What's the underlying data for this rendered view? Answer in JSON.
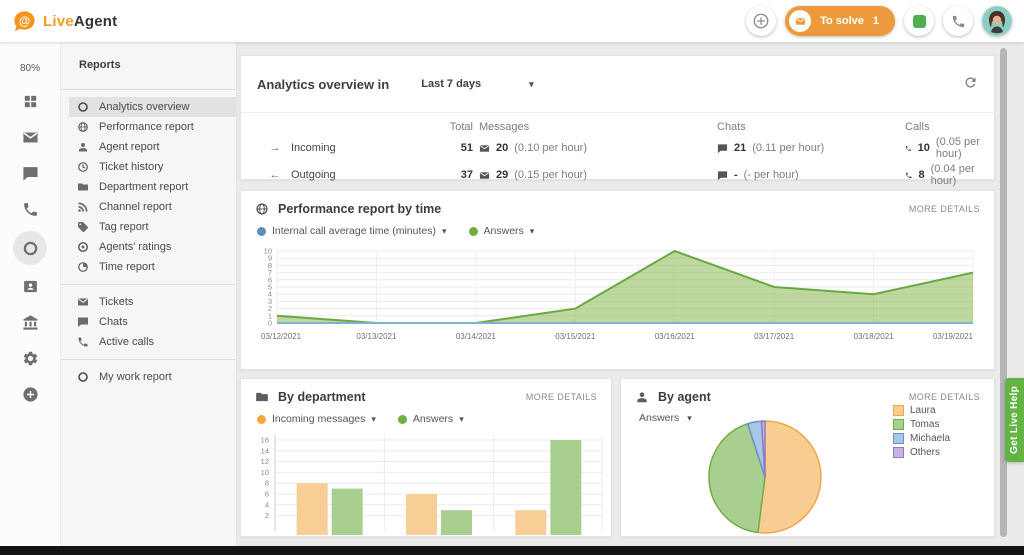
{
  "topbar": {
    "brand_live": "Live",
    "brand_agent": "Agent",
    "to_solve": {
      "label": "To solve",
      "count": "1",
      "color": "#ED9A3F"
    }
  },
  "rail": {
    "usage": "80%",
    "items": [
      {
        "icon": "grid",
        "name": "dashboard"
      },
      {
        "icon": "mail",
        "name": "tickets"
      },
      {
        "icon": "chat",
        "name": "chats"
      },
      {
        "icon": "phone",
        "name": "calls"
      },
      {
        "icon": "ring",
        "name": "reports",
        "selected": true
      },
      {
        "icon": "card",
        "name": "customers"
      },
      {
        "icon": "bank",
        "name": "departments"
      },
      {
        "icon": "gear",
        "name": "settings"
      },
      {
        "icon": "plus",
        "name": "add"
      }
    ]
  },
  "sidebar": {
    "title": "Reports",
    "sections": [
      {
        "items": [
          {
            "icon": "ring",
            "label": "Analytics overview",
            "selected": true
          },
          {
            "icon": "globe",
            "label": "Performance report"
          },
          {
            "icon": "person",
            "label": "Agent report"
          },
          {
            "icon": "history",
            "label": "Ticket history"
          },
          {
            "icon": "folder",
            "label": "Department report"
          },
          {
            "icon": "rss",
            "label": "Channel report"
          },
          {
            "icon": "tag",
            "label": "Tag report"
          },
          {
            "icon": "target",
            "label": "Agents' ratings"
          },
          {
            "icon": "timepie",
            "label": "Time report"
          }
        ]
      },
      {
        "items": [
          {
            "icon": "mail",
            "label": "Tickets"
          },
          {
            "icon": "chat",
            "label": "Chats"
          },
          {
            "icon": "phone",
            "label": "Active calls"
          }
        ]
      },
      {
        "items": [
          {
            "icon": "ring",
            "label": "My work report"
          }
        ]
      }
    ]
  },
  "overview": {
    "title": "Analytics overview in",
    "range": "Last 7 days"
  },
  "stats": {
    "columns": {
      "total": "Total",
      "messages": "Messages",
      "chats": "Chats",
      "calls": "Calls"
    },
    "rows": [
      {
        "arrow": "→",
        "label": "Incoming",
        "total": "51",
        "messages": "20",
        "messages_rate": "(0.10 per hour)",
        "chats": "21",
        "chats_rate": "(0.11 per hour)",
        "calls": "10",
        "calls_rate": "(0.05 per hour)"
      },
      {
        "arrow": "←",
        "label": "Outgoing",
        "total": "37",
        "messages": "29",
        "messages_rate": "(0.15 per hour)",
        "chats": "-",
        "chats_rate": "(- per hour)",
        "calls": "8",
        "calls_rate": "(0.04 per hour)"
      }
    ]
  },
  "panels": {
    "performance": {
      "title": "Performance report by time",
      "more": "MORE DETAILS"
    },
    "department": {
      "title": "By department",
      "more": "MORE DETAILS"
    },
    "agent": {
      "title": "By agent",
      "more": "MORE DETAILS",
      "metric": "Answers"
    }
  },
  "help_tab": {
    "label": "Get Live Help",
    "color": "#63B345"
  },
  "chart_data": [
    {
      "type": "area",
      "title": "Performance report by time",
      "x": [
        "03/12/2021",
        "03/13/2021",
        "03/14/2021",
        "03/15/2021",
        "03/16/2021",
        "03/17/2021",
        "03/18/2021",
        "03/19/2021"
      ],
      "ylim": [
        0,
        10
      ],
      "grid": true,
      "legend_position": "top",
      "series": [
        {
          "name": "Internal call average time (minutes)",
          "color": "#5B8FB4",
          "line": "#82B1D0",
          "values": [
            0,
            0,
            0,
            0,
            0,
            0,
            0,
            0
          ]
        },
        {
          "name": "Answers",
          "color": "#6FAF3F",
          "line": "#69A843",
          "fill": "rgba(126,178,66,0.5)",
          "values": [
            1,
            0,
            0,
            2,
            10,
            5,
            4,
            7
          ]
        }
      ]
    },
    {
      "type": "bar",
      "title": "By department",
      "categories": [
        "",
        "",
        ""
      ],
      "ylim": [
        0,
        16
      ],
      "y_ticks": [
        2,
        4,
        6,
        8,
        10,
        12,
        14,
        16
      ],
      "grid": true,
      "series": [
        {
          "name": "Incoming messages",
          "color": "#F2A83B",
          "fill": "#F7CE95",
          "values": [
            8,
            6,
            3
          ]
        },
        {
          "name": "Answers",
          "color": "#6FAF3F",
          "fill": "#A9CF90",
          "values": [
            7,
            3,
            16
          ]
        }
      ]
    },
    {
      "type": "pie",
      "title": "By agent",
      "metric": "Answers",
      "slices": [
        {
          "label": "Laura",
          "pct": 52,
          "fill": "#F8CD92",
          "stroke": "#EFA64A"
        },
        {
          "label": "Tomas",
          "pct": 43,
          "fill": "#A9CF90",
          "stroke": "#6FAF3F"
        },
        {
          "label": "Michaela",
          "pct": 4,
          "fill": "#A8C6E5",
          "stroke": "#6A93C5"
        },
        {
          "label": "Others",
          "pct": 1,
          "fill": "#C9B3E3",
          "stroke": "#8E7CC3"
        }
      ]
    }
  ]
}
